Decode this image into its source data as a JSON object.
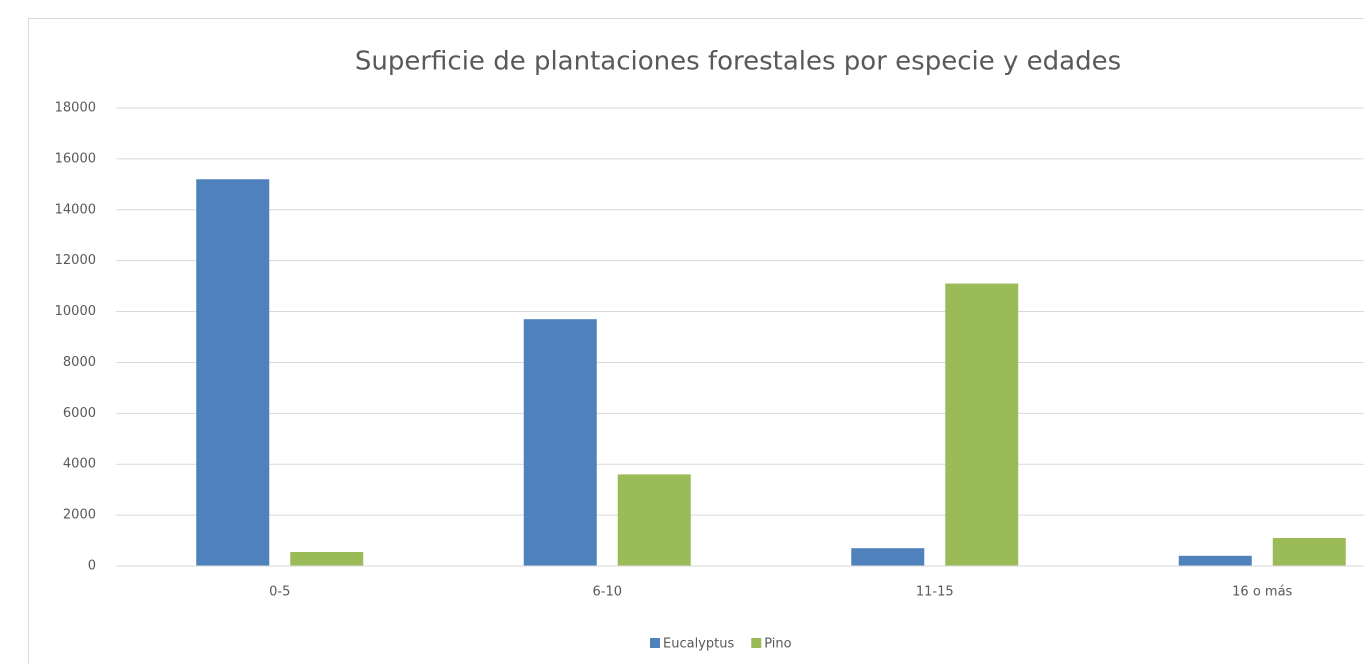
{
  "chart_data": {
    "type": "bar",
    "title": "Superficie de plantaciones forestales por especie  y edades",
    "categories": [
      "0-5",
      "6-10",
      "11-15",
      "16 o más"
    ],
    "series": [
      {
        "name": "Eucalyptus",
        "color": "#4f81bd",
        "values": [
          15200,
          9700,
          700,
          400
        ]
      },
      {
        "name": "Pino",
        "color": "#9bbb59",
        "values": [
          550,
          3600,
          11100,
          1100
        ]
      }
    ],
    "ylim": [
      0,
      18000
    ],
    "yticks": [
      0,
      2000,
      4000,
      6000,
      8000,
      10000,
      12000,
      14000,
      16000,
      18000
    ],
    "grid": true,
    "legend": "bottom"
  }
}
